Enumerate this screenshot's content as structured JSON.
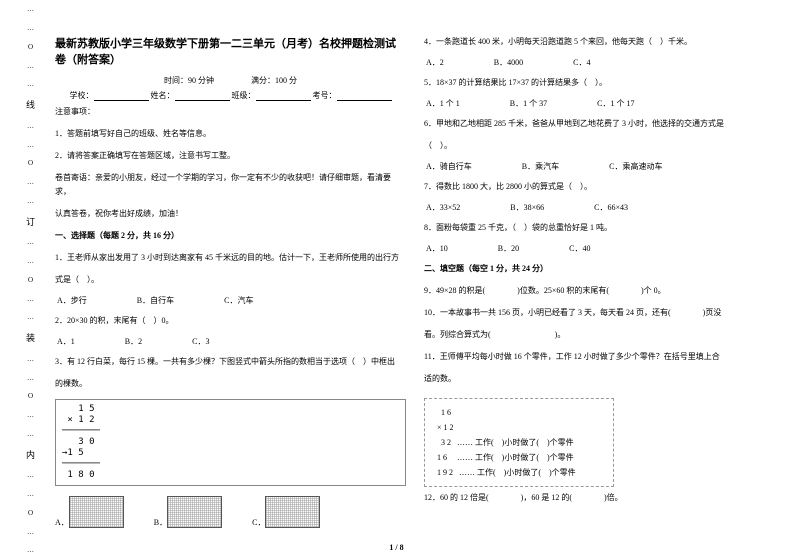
{
  "binding": [
    "…",
    "…",
    "O",
    "…",
    "…",
    "线",
    "…",
    "…",
    "O",
    "…",
    "…",
    "订",
    "…",
    "…",
    "O",
    "…",
    "…",
    "装",
    "…",
    "…",
    "O",
    "…",
    "…",
    "内",
    "…",
    "…",
    "O",
    "…",
    "…"
  ],
  "title": "最新苏教版小学三年级数学下册第一二三单元（月考）名校押题检测试卷（附答案）",
  "time": "时间：90 分钟",
  "score": "满分：100 分",
  "school": "学校：",
  "cls": "班级：",
  "name": "姓名：",
  "seat": "考号：",
  "notes": "注意事项：",
  "n1": "1．答题前填写好自己的班级、姓名等信息。",
  "n2": "2．请将答案正确填写在答题区域，注意书写工整。",
  "greet": "卷首寄语：亲爱的小朋友，经过一个学期的学习，你一定有不少的收获吧！请仔细审题，看清要求，",
  "greet2": "认真答卷，祝你考出好成绩，加油！",
  "s1": "一、选择题（每题 2 分，共 16 分）",
  "q1": "1．王老师从家出发用了 3 小时到达离家有 45 千米远的目的地。估计一下，王老师所使用的出行方",
  "q1b": "式是（　）。",
  "q1o": {
    "a": "A．步行",
    "b": "B．自行车",
    "c": "C．汽车"
  },
  "q2": "2．20×30 的积，末尾有（　）0。",
  "q2o": {
    "a": "A．1",
    "b": "B．2",
    "c": "C．3"
  },
  "q3": "3．有 12 行白菜，每行 15 棵。一共有多少棵？下图竖式中箭头所指的数相当于选项（　）中框出",
  "q3b": "的棵数。",
  "mult": "   1 5\n × 1 2\n───────\n   3 0\n→1 5\n───────\n 1 8 0",
  "abc": {
    "a": "A．",
    "b": "B．",
    "c": "C．"
  },
  "q4": "4．一条跑道长 400 米，小明每天沿跑道跑 5 个来回，他每天跑（　）千米。",
  "q4o": {
    "a": "A．2",
    "b": "B．4000",
    "c": "C．4"
  },
  "q5": "5．18×37 的计算结果比 17×37 的计算结果多（　）。",
  "q5o": {
    "a": "A．1 个 1",
    "b": "B．1 个 37",
    "c": "C．1 个 17"
  },
  "q6": "6．甲地和乙地相距 285 千米，爸爸从甲地到乙地花费了 3 小时，他选择的交通方式是",
  "q6b": "（　）。",
  "q6o": {
    "a": "A．骑自行车",
    "b": "B．乘汽车",
    "c": "C．乘高速动车"
  },
  "q7": "7．得数比 1800 大，比 2800 小的算式是（　）。",
  "q7o": {
    "a": "A．33×52",
    "b": "B．38×66",
    "c": "C．66×43"
  },
  "q8": "8．面粉每袋重 25 千克，（　）袋的总重恰好是 1 吨。",
  "q8o": {
    "a": "A．10",
    "b": "B．20",
    "c": "C．40"
  },
  "s2": "二、填空题（每空 1 分，共 24 分）",
  "q9": "9．49×28 的积是(　　　　)位数。25×60 积的末尾有(　　　　)个 0。",
  "q10": "10．一本故事书一共 156 页，小明已经看了 3 天，每天看 24 页，还有(　　　　)页没",
  "q10b": "看。列综合算式为(　　　　　　　　)。",
  "q11": "11．王师傅平均每小时做 16 个零件，工作 12 小时做了多少个零件？在括号里填上合",
  "q11b": "适的数。",
  "calc": {
    "r1": "   1 6",
    "r2": " × 1 2",
    "r3": "   3 2   …… 工作(　)小时做了(　)个零件",
    "r4": " 1 6     …… 工作(　)小时做了(　)个零件",
    "r5": " 1 9 2   …… 工作(　)小时做了(　)个零件"
  },
  "q12": "12．60 的 12 倍是(　　　　)，60 是 12 的(　　　　)倍。",
  "pagenum": "1 / 8"
}
